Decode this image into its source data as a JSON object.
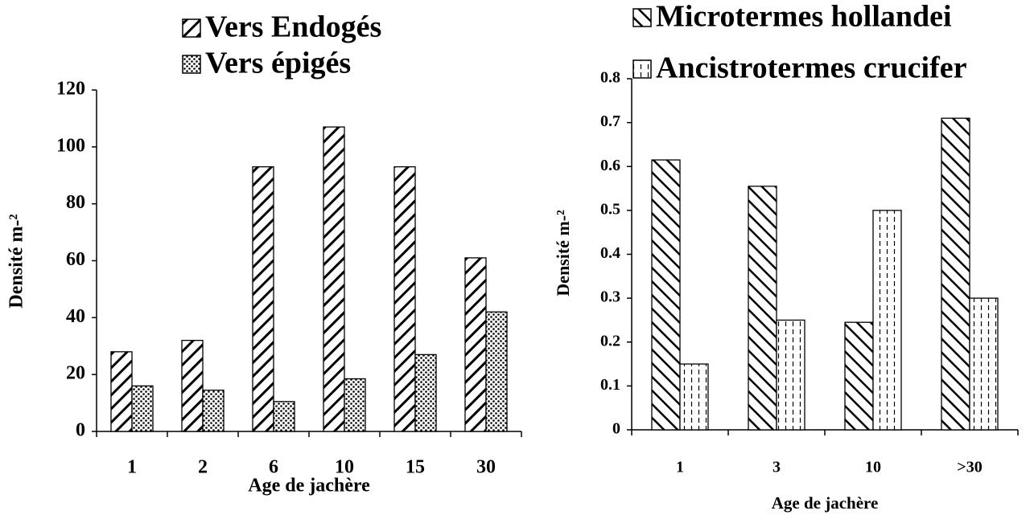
{
  "chart_data": [
    {
      "type": "bar",
      "y_label": "Densité m-²",
      "x_label": "Age de jachère",
      "categories": [
        "1",
        "2",
        "6",
        "10",
        "15",
        "30"
      ],
      "series": [
        {
          "name": "Vers Endogés",
          "color": "#000000",
          "pattern": "diagonal-forward",
          "values": [
            28,
            32,
            93,
            107,
            93,
            61
          ]
        },
        {
          "name": "Vers épigés",
          "color": "#000000",
          "pattern": "dots",
          "values": [
            16,
            14.5,
            10.5,
            18.5,
            27,
            42
          ]
        }
      ],
      "ylim": [
        0,
        120
      ],
      "yticks": [
        0,
        20,
        40,
        60,
        80,
        100,
        120
      ],
      "grid": false
    },
    {
      "type": "bar",
      "y_label": "Densité m-²",
      "x_label": "Age de jachère",
      "categories": [
        "1",
        "3",
        "10",
        ">30"
      ],
      "series": [
        {
          "name": "Microtermes hollandei",
          "color": "#000000",
          "pattern": "diagonal-back",
          "values": [
            0.615,
            0.555,
            0.245,
            0.71
          ]
        },
        {
          "name": "Ancistrotermes crucifer",
          "color": "#000000",
          "pattern": "dashes",
          "values": [
            0.15,
            0.25,
            0.5,
            0.3
          ]
        }
      ],
      "ylim": [
        0,
        0.8
      ],
      "yticks": [
        0,
        0.1,
        0.2,
        0.3,
        0.4,
        0.5,
        0.6,
        0.7,
        0.8
      ],
      "grid": false
    }
  ]
}
